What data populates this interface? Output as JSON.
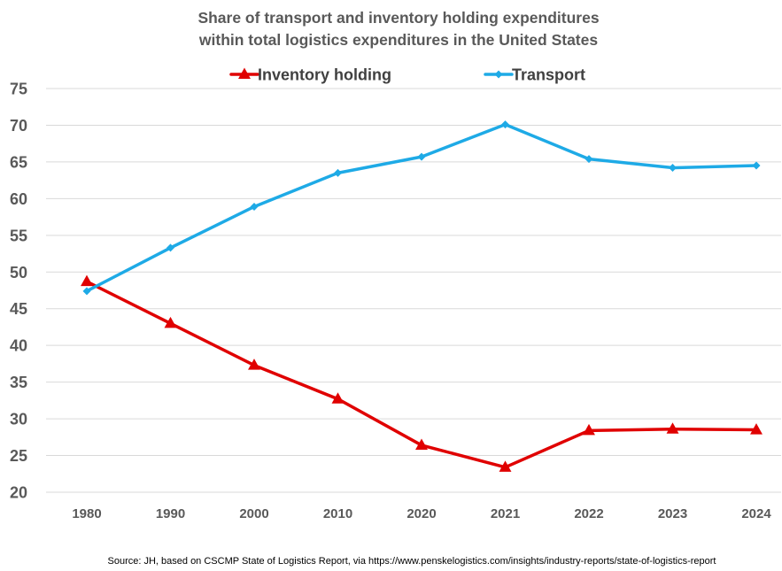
{
  "chart_data": {
    "type": "line",
    "title_lines": [
      "Share of transport and inventory holding expenditures",
      "within total logistics expenditures in the United States"
    ],
    "xlabel": "",
    "ylabel": "",
    "categories": [
      "1980",
      "1990",
      "2000",
      "2010",
      "2020",
      "2021",
      "2022",
      "2023",
      "2024"
    ],
    "ylim": [
      20,
      75
    ],
    "yticks": [
      20,
      25,
      30,
      35,
      40,
      45,
      50,
      55,
      60,
      65,
      70,
      75
    ],
    "grid": true,
    "legend_position": "top",
    "series": [
      {
        "name": "Inventory holding",
        "color": "#e00000",
        "marker": "triangle",
        "values": [
          48.7,
          43.0,
          37.3,
          32.7,
          26.4,
          23.4,
          28.4,
          28.6,
          28.5
        ]
      },
      {
        "name": "Transport",
        "color": "#1eaae6",
        "marker": "diamond",
        "values": [
          47.4,
          53.3,
          58.9,
          63.5,
          65.7,
          70.1,
          65.4,
          64.2,
          64.5
        ]
      }
    ],
    "source": "Source: JH, based on CSCMP State of Logistics Report, via https://www.penskelogistics.com/insights/industry-reports/state-of-logistics-report"
  }
}
